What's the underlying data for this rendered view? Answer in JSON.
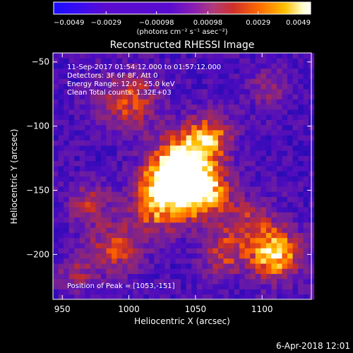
{
  "colorbar": {
    "tick_labels": [
      "−0.0049",
      "−0.0029",
      "−0.00098",
      "0.00098",
      "0.0029",
      "0.0049"
    ],
    "tick_values": [
      -0.0049,
      -0.0029,
      -0.00098,
      0.00098,
      0.0029,
      0.0049
    ],
    "range": [
      -0.0049,
      0.0049
    ],
    "units_label": "(photons cm⁻² s⁻¹ asec⁻²)",
    "colors": [
      "#1a0dff",
      "#5a0bd0",
      "#5a0bd0",
      "#8b1fb0",
      "#b03a7c",
      "#c9302a",
      "#ff6a00",
      "#ffc000",
      "#ffffe0",
      "#ffffff"
    ]
  },
  "chart_data": {
    "type": "heatmap",
    "title": "Reconstructed RHESSI Image",
    "xlabel": "Heliocentric X (arcsec)",
    "ylabel": "Heliocentric Y (arcsec)",
    "xlim": [
      943,
      1137
    ],
    "ylim": [
      -235,
      -43
    ],
    "x_ticks": [
      950,
      1000,
      1050,
      1100
    ],
    "x_tick_labels": [
      "950",
      "1000",
      "1050",
      "1100"
    ],
    "y_ticks": [
      -50,
      -100,
      -150,
      -200
    ],
    "y_tick_labels": [
      "−50",
      "−100",
      "−150",
      "−200"
    ],
    "annotations": [
      "11-Sep-2017 01:54:12.000 to 01:57:12.000",
      "Detectors: 3F 6F 8F, Att 0",
      "Energy Range: 12.0 - 25.0 keV",
      "Clean     Total counts: 1.32E+03"
    ],
    "peak_label": "Position of Peak = [1053,-151]",
    "peak": [
      1053,
      -151
    ],
    "sources": [
      {
        "x": 1053,
        "y": -151,
        "amp": 1.0,
        "sigma": 15
      },
      {
        "x": 1028,
        "y": -142,
        "amp": 0.75,
        "sigma": 14
      },
      {
        "x": 1040,
        "y": -125,
        "amp": 0.65,
        "sigma": 15
      },
      {
        "x": 1060,
        "y": -108,
        "amp": 0.65,
        "sigma": 13
      },
      {
        "x": 1020,
        "y": -165,
        "amp": 0.55,
        "sigma": 14
      },
      {
        "x": 1110,
        "y": -200,
        "amp": 0.85,
        "sigma": 14
      },
      {
        "x": 1090,
        "y": -175,
        "amp": 0.4,
        "sigma": 15
      },
      {
        "x": 1000,
        "y": -80,
        "amp": 0.55,
        "sigma": 16
      },
      {
        "x": 990,
        "y": -195,
        "amp": 0.5,
        "sigma": 15
      },
      {
        "x": 970,
        "y": -160,
        "amp": 0.4,
        "sigma": 12
      },
      {
        "x": 1070,
        "y": -200,
        "amp": 0.45,
        "sigma": 12
      },
      {
        "x": 1105,
        "y": -70,
        "amp": 0.3,
        "sigma": 12
      },
      {
        "x": 960,
        "y": -215,
        "amp": 0.35,
        "sigma": 10
      }
    ]
  },
  "footer": {
    "timestamp": "6-Apr-2018 12:01"
  }
}
